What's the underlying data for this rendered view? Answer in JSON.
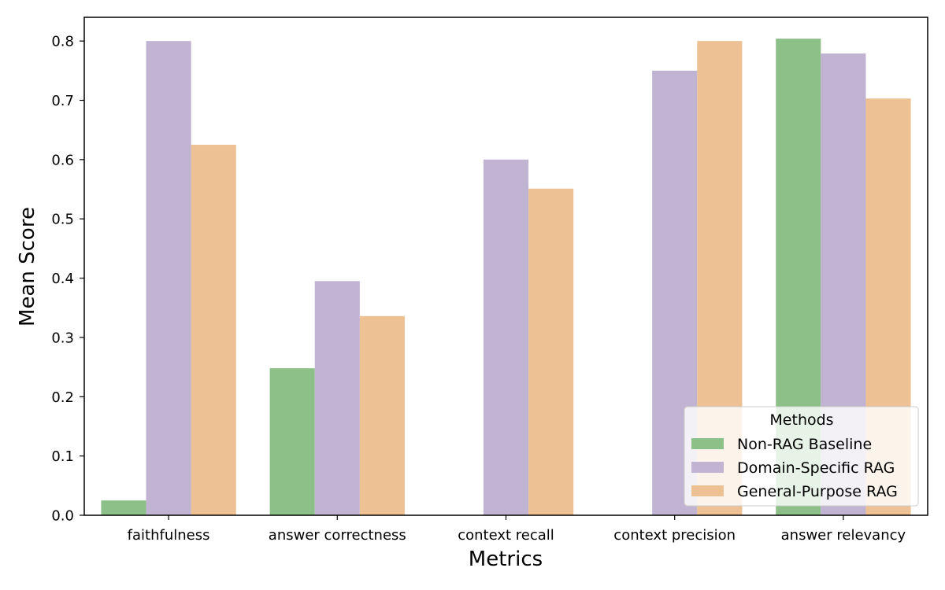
{
  "chart_data": {
    "type": "bar",
    "xlabel": "Metrics",
    "ylabel": "Mean Score",
    "categories": [
      "faithfulness",
      "answer correctness",
      "context recall",
      "context precision",
      "answer relevancy"
    ],
    "series": [
      {
        "name": "Non-RAG Baseline",
        "color": "#8cc088",
        "values": [
          0.025,
          0.248,
          0.0,
          0.0,
          0.804
        ]
      },
      {
        "name": "Domain-Specific RAG",
        "color": "#c1b3d2",
        "values": [
          0.8,
          0.395,
          0.6,
          0.75,
          0.779
        ]
      },
      {
        "name": "General-Purpose RAG",
        "color": "#edc194",
        "values": [
          0.625,
          0.336,
          0.551,
          0.8,
          0.703
        ]
      }
    ],
    "ylim": [
      0,
      0.84
    ],
    "yticks": [
      "0.0",
      "0.1",
      "0.2",
      "0.3",
      "0.4",
      "0.5",
      "0.6",
      "0.7",
      "0.8"
    ],
    "grid": false,
    "legend": {
      "title": "Methods",
      "position": "lower-right"
    }
  }
}
